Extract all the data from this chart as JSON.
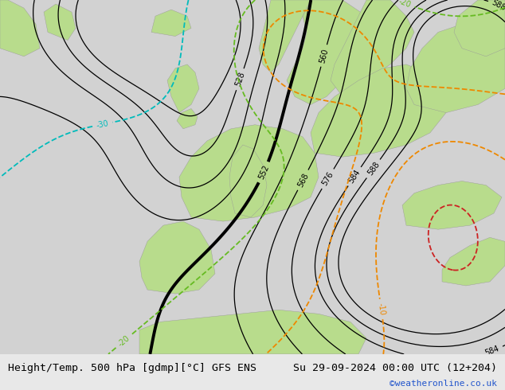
{
  "title_left": "Height/Temp. 500 hPa [gdmp][°C] GFS ENS",
  "title_right": "Su 29-09-2024 00:00 UTC (12+204)",
  "watermark": "©weatheronline.co.uk",
  "bg_light": "#e8e8e8",
  "land_green": "#b8dc8c",
  "land_green2": "#c8e8a0",
  "sea_gray": "#d0d0d0",
  "hgt_color": "#000000",
  "temp_cyan": "#00bbbb",
  "temp_orange": "#ee8800",
  "temp_green": "#66bb22",
  "temp_red": "#cc2222",
  "bottom_bar": "#f2f2f2",
  "title_fontsize": 9.5,
  "watermark_color": "#2255cc"
}
